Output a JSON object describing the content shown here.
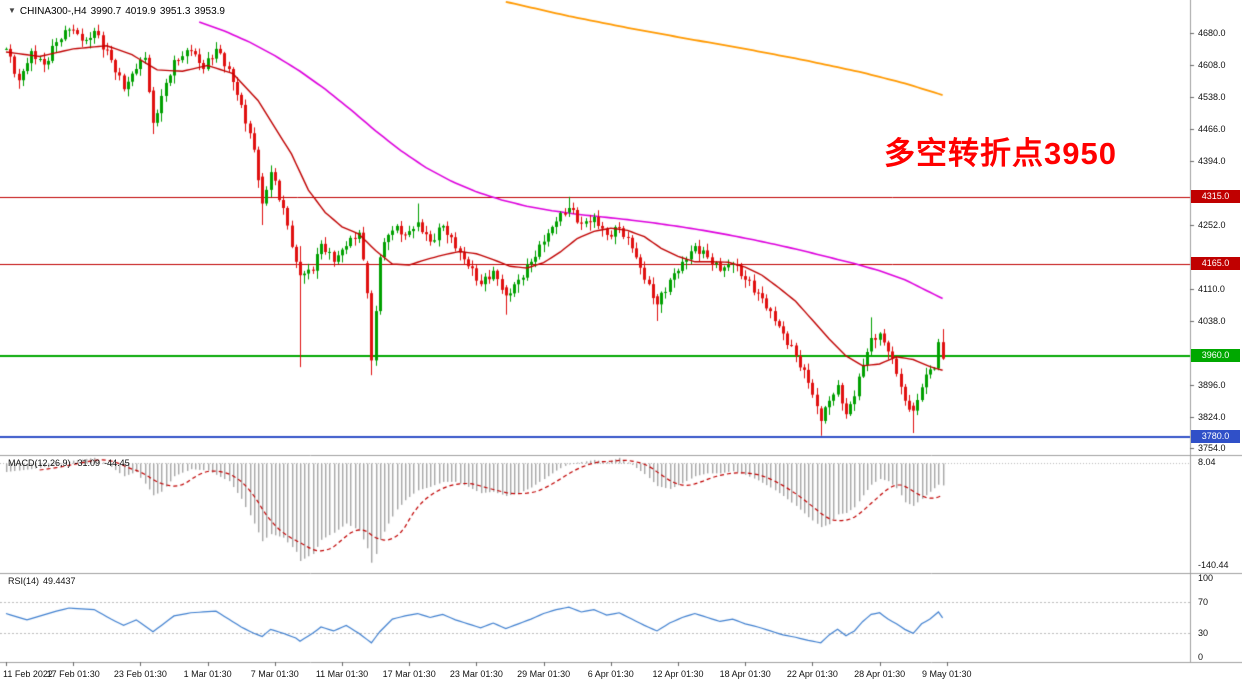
{
  "header": {
    "symbol_period": "CHINA300-,H4",
    "open": "3990.7",
    "high": "4019.9",
    "low": "3951.3",
    "close": "3953.9"
  },
  "annotation": {
    "text": "多空转折点3950",
    "color": "#ff0000"
  },
  "price_scale": {
    "ticks": [
      4680,
      4608,
      4538,
      4466,
      4394,
      4252,
      4110,
      4038,
      3896,
      3824,
      3754
    ]
  },
  "time_scale": {
    "labels": [
      "11 Feb 2022",
      "17 Feb 01:30",
      "23 Feb 01:30",
      "1 Mar 01:30",
      "7 Mar 01:30",
      "11 Mar 01:30",
      "17 Mar 01:30",
      "23 Mar 01:30",
      "29 Mar 01:30",
      "6 Apr 01:30",
      "12 Apr 01:30",
      "18 Apr 01:30",
      "22 Apr 01:30",
      "28 Apr 01:30",
      "9 May 01:30"
    ],
    "step": 16
  },
  "indicators": {
    "macd": {
      "label": "MACD(12,26,9)",
      "value_main": "-31.09",
      "value_signal": "-44.45",
      "scale_max": "8.04",
      "scale_min": "-140.44"
    },
    "rsi": {
      "label": "RSI(14)",
      "value": "49.4437",
      "scale_levels": [
        100,
        70,
        30,
        0
      ]
    }
  },
  "chart_data": {
    "type": "candlestick",
    "symbol": "CHINA300-",
    "timeframe": "H4",
    "bar_count": 224,
    "price_ylim": [
      3739,
      4754
    ],
    "macd_ylim": [
      -155,
      12
    ],
    "rsi_ylim": [
      -6.3,
      106.3
    ],
    "levels": [
      {
        "price": 4315,
        "color": "#c00000",
        "width": 1
      },
      {
        "price": 4165,
        "color": "#c00000",
        "width": 1
      },
      {
        "price": 3960,
        "color": "#00a800",
        "width": 2
      },
      {
        "price": 3780,
        "color": "#3050c8",
        "width": 2
      }
    ],
    "colors": {
      "bull": "#00a000",
      "bear": "#e01010",
      "macd_hist": "#a6a6a6",
      "macd_signal": "#c00000",
      "rsi": "#4080d0"
    },
    "close_anchors": [
      [
        0,
        4645
      ],
      [
        3,
        4575
      ],
      [
        6,
        4640
      ],
      [
        9,
        4610
      ],
      [
        12,
        4660
      ],
      [
        15,
        4688
      ],
      [
        19,
        4665
      ],
      [
        21,
        4685
      ],
      [
        25,
        4620
      ],
      [
        28,
        4555
      ],
      [
        31,
        4600
      ],
      [
        33,
        4625
      ],
      [
        35,
        4480
      ],
      [
        37,
        4540
      ],
      [
        40,
        4620
      ],
      [
        44,
        4640
      ],
      [
        47,
        4600
      ],
      [
        50,
        4645
      ],
      [
        53,
        4600
      ],
      [
        56,
        4520
      ],
      [
        59,
        4420
      ],
      [
        61,
        4300
      ],
      [
        63,
        4370
      ],
      [
        66,
        4290
      ],
      [
        69,
        4170
      ],
      [
        70,
        4140
      ],
      [
        73,
        4150
      ],
      [
        75,
        4210
      ],
      [
        78,
        4170
      ],
      [
        81,
        4205
      ],
      [
        84,
        4235
      ],
      [
        86,
        4100
      ],
      [
        87,
        3950
      ],
      [
        88,
        4060
      ],
      [
        89,
        4180
      ],
      [
        91,
        4230
      ],
      [
        93,
        4250
      ],
      [
        95,
        4230
      ],
      [
        98,
        4258
      ],
      [
        101,
        4215
      ],
      [
        104,
        4250
      ],
      [
        107,
        4200
      ],
      [
        110,
        4160
      ],
      [
        113,
        4120
      ],
      [
        116,
        4150
      ],
      [
        119,
        4095
      ],
      [
        122,
        4130
      ],
      [
        125,
        4170
      ],
      [
        128,
        4215
      ],
      [
        131,
        4260
      ],
      [
        134,
        4290
      ],
      [
        137,
        4255
      ],
      [
        140,
        4270
      ],
      [
        143,
        4230
      ],
      [
        146,
        4245
      ],
      [
        149,
        4200
      ],
      [
        152,
        4130
      ],
      [
        155,
        4075
      ],
      [
        158,
        4130
      ],
      [
        161,
        4170
      ],
      [
        164,
        4205
      ],
      [
        167,
        4180
      ],
      [
        170,
        4150
      ],
      [
        173,
        4165
      ],
      [
        176,
        4130
      ],
      [
        179,
        4100
      ],
      [
        182,
        4060
      ],
      [
        185,
        4010
      ],
      [
        188,
        3960
      ],
      [
        191,
        3900
      ],
      [
        194,
        3815
      ],
      [
        196,
        3860
      ],
      [
        198,
        3895
      ],
      [
        200,
        3830
      ],
      [
        202,
        3870
      ],
      [
        204,
        3940
      ],
      [
        206,
        4000
      ],
      [
        208,
        4010
      ],
      [
        210,
        3970
      ],
      [
        212,
        3920
      ],
      [
        214,
        3860
      ],
      [
        216,
        3838
      ],
      [
        218,
        3890
      ],
      [
        220,
        3930
      ],
      [
        221,
        3932
      ],
      [
        222,
        3990.7
      ],
      [
        223,
        3953.9
      ]
    ],
    "candle_overrides": {
      "35": [
        4552,
        4560,
        4455,
        4480
      ],
      "61": [
        4360,
        4368,
        4252,
        4300
      ],
      "70": [
        4170,
        4205,
        3935,
        4140
      ],
      "86": [
        4167,
        4172,
        4088,
        4100
      ],
      "87": [
        4100,
        4106,
        3917,
        3950
      ],
      "88": [
        3950,
        4072,
        3938,
        4060
      ],
      "89": [
        4060,
        4185,
        4052,
        4180
      ],
      "98": [
        4248,
        4300,
        4238,
        4258
      ],
      "119": [
        4113,
        4118,
        4052,
        4095
      ],
      "134": [
        4280,
        4315,
        4270,
        4290
      ],
      "155": [
        4093,
        4098,
        4038,
        4075
      ],
      "194": [
        3843,
        3848,
        3782,
        3815
      ],
      "206": [
        3970,
        4046,
        3962,
        4000
      ],
      "216": [
        3849,
        3856,
        3788,
        3838
      ],
      "222": [
        3932,
        3998,
        3928,
        3990.7
      ],
      "223": [
        3990.7,
        4019.9,
        3951.3,
        3953.9
      ]
    },
    "ma_lines": [
      {
        "name": "ma-slow-magenta",
        "color": "#dd00dd",
        "width": 1.6,
        "anchors": [
          [
            46,
            4705
          ],
          [
            52,
            4685
          ],
          [
            58,
            4660
          ],
          [
            64,
            4630
          ],
          [
            70,
            4595
          ],
          [
            76,
            4555
          ],
          [
            82,
            4510
          ],
          [
            88,
            4462
          ],
          [
            94,
            4418
          ],
          [
            100,
            4380
          ],
          [
            106,
            4350
          ],
          [
            112,
            4326
          ],
          [
            118,
            4308
          ],
          [
            124,
            4294
          ],
          [
            130,
            4284
          ],
          [
            136,
            4276
          ],
          [
            142,
            4270
          ],
          [
            148,
            4264
          ],
          [
            154,
            4257
          ],
          [
            160,
            4249
          ],
          [
            166,
            4240
          ],
          [
            172,
            4230
          ],
          [
            178,
            4219
          ],
          [
            184,
            4207
          ],
          [
            190,
            4194
          ],
          [
            196,
            4180
          ],
          [
            202,
            4166
          ],
          [
            208,
            4150
          ],
          [
            214,
            4130
          ],
          [
            220,
            4102
          ],
          [
            223,
            4088
          ]
        ]
      },
      {
        "name": "ma-long-orange",
        "color": "#ff9900",
        "width": 1.8,
        "anchors": [
          [
            119,
            4750
          ],
          [
            134,
            4718
          ],
          [
            148,
            4692
          ],
          [
            162,
            4668
          ],
          [
            176,
            4645
          ],
          [
            190,
            4620
          ],
          [
            204,
            4592
          ],
          [
            214,
            4568
          ],
          [
            223,
            4542
          ]
        ]
      },
      {
        "name": "ma-fast-red",
        "color": "#c00000",
        "width": 1.4,
        "anchors": [
          [
            0,
            4638
          ],
          [
            8,
            4628
          ],
          [
            16,
            4645
          ],
          [
            24,
            4652
          ],
          [
            30,
            4632
          ],
          [
            36,
            4598
          ],
          [
            42,
            4595
          ],
          [
            48,
            4608
          ],
          [
            54,
            4590
          ],
          [
            60,
            4530
          ],
          [
            64,
            4470
          ],
          [
            68,
            4410
          ],
          [
            72,
            4330
          ],
          [
            76,
            4280
          ],
          [
            80,
            4248
          ],
          [
            84,
            4232
          ],
          [
            88,
            4195
          ],
          [
            92,
            4165
          ],
          [
            96,
            4163
          ],
          [
            100,
            4175
          ],
          [
            104,
            4185
          ],
          [
            108,
            4193
          ],
          [
            112,
            4188
          ],
          [
            116,
            4175
          ],
          [
            120,
            4160
          ],
          [
            124,
            4156
          ],
          [
            128,
            4168
          ],
          [
            132,
            4192
          ],
          [
            136,
            4222
          ],
          [
            140,
            4238
          ],
          [
            144,
            4245
          ],
          [
            148,
            4240
          ],
          [
            152,
            4226
          ],
          [
            156,
            4200
          ],
          [
            160,
            4182
          ],
          [
            164,
            4170
          ],
          [
            168,
            4170
          ],
          [
            172,
            4169
          ],
          [
            176,
            4158
          ],
          [
            180,
            4140
          ],
          [
            184,
            4112
          ],
          [
            188,
            4082
          ],
          [
            192,
            4040
          ],
          [
            196,
            3998
          ],
          [
            200,
            3960
          ],
          [
            204,
            3938
          ],
          [
            208,
            3942
          ],
          [
            212,
            3958
          ],
          [
            216,
            3952
          ],
          [
            220,
            3936
          ],
          [
            223,
            3928
          ]
        ]
      }
    ],
    "macd_anchors": [
      [
        0,
        -12
      ],
      [
        6,
        -8
      ],
      [
        12,
        -2
      ],
      [
        16,
        4
      ],
      [
        21,
        8
      ],
      [
        25,
        -5
      ],
      [
        28,
        -18
      ],
      [
        31,
        -12
      ],
      [
        35,
        -45
      ],
      [
        37,
        -40
      ],
      [
        40,
        -18
      ],
      [
        44,
        -8
      ],
      [
        48,
        -10
      ],
      [
        53,
        -25
      ],
      [
        56,
        -50
      ],
      [
        59,
        -85
      ],
      [
        61,
        -110
      ],
      [
        63,
        -100
      ],
      [
        66,
        -105
      ],
      [
        69,
        -125
      ],
      [
        70,
        -138
      ],
      [
        73,
        -128
      ],
      [
        75,
        -108
      ],
      [
        78,
        -98
      ],
      [
        81,
        -85
      ],
      [
        84,
        -95
      ],
      [
        86,
        -120
      ],
      [
        87,
        -140.44
      ],
      [
        88,
        -128
      ],
      [
        89,
        -108
      ],
      [
        91,
        -85
      ],
      [
        93,
        -65
      ],
      [
        95,
        -52
      ],
      [
        98,
        -38
      ],
      [
        101,
        -33
      ],
      [
        104,
        -26
      ],
      [
        107,
        -26
      ],
      [
        110,
        -33
      ],
      [
        113,
        -42
      ],
      [
        116,
        -40
      ],
      [
        119,
        -46
      ],
      [
        122,
        -42
      ],
      [
        125,
        -34
      ],
      [
        128,
        -22
      ],
      [
        131,
        -10
      ],
      [
        134,
        0
      ],
      [
        137,
        2
      ],
      [
        140,
        5
      ],
      [
        143,
        2
      ],
      [
        146,
        8
      ],
      [
        149,
        -2
      ],
      [
        152,
        -15
      ],
      [
        155,
        -32
      ],
      [
        158,
        -36
      ],
      [
        161,
        -28
      ],
      [
        164,
        -18
      ],
      [
        167,
        -14
      ],
      [
        170,
        -14
      ],
      [
        173,
        -11
      ],
      [
        176,
        -16
      ],
      [
        179,
        -24
      ],
      [
        182,
        -34
      ],
      [
        185,
        -46
      ],
      [
        188,
        -60
      ],
      [
        191,
        -76
      ],
      [
        194,
        -90
      ],
      [
        196,
        -86
      ],
      [
        198,
        -72
      ],
      [
        200,
        -70
      ],
      [
        202,
        -62
      ],
      [
        204,
        -45
      ],
      [
        206,
        -30
      ],
      [
        208,
        -22
      ],
      [
        210,
        -25
      ],
      [
        212,
        -35
      ],
      [
        214,
        -55
      ],
      [
        216,
        -60
      ],
      [
        218,
        -50
      ],
      [
        220,
        -40
      ],
      [
        222,
        -30
      ],
      [
        223,
        -31.09
      ]
    ],
    "rsi_anchors": [
      [
        0,
        55
      ],
      [
        5,
        47
      ],
      [
        12,
        58
      ],
      [
        15,
        62
      ],
      [
        21,
        60
      ],
      [
        25,
        48
      ],
      [
        28,
        40
      ],
      [
        31,
        47
      ],
      [
        35,
        32
      ],
      [
        40,
        52
      ],
      [
        44,
        56
      ],
      [
        50,
        58
      ],
      [
        53,
        48
      ],
      [
        56,
        38
      ],
      [
        59,
        30
      ],
      [
        61,
        26
      ],
      [
        63,
        35
      ],
      [
        66,
        30
      ],
      [
        69,
        24
      ],
      [
        70,
        20
      ],
      [
        73,
        30
      ],
      [
        75,
        38
      ],
      [
        78,
        33
      ],
      [
        81,
        40
      ],
      [
        84,
        30
      ],
      [
        86,
        22
      ],
      [
        87,
        18
      ],
      [
        89,
        32
      ],
      [
        92,
        48
      ],
      [
        95,
        52
      ],
      [
        98,
        55
      ],
      [
        101,
        50
      ],
      [
        104,
        54
      ],
      [
        107,
        47
      ],
      [
        110,
        42
      ],
      [
        113,
        37
      ],
      [
        116,
        43
      ],
      [
        119,
        36
      ],
      [
        122,
        42
      ],
      [
        125,
        48
      ],
      [
        128,
        55
      ],
      [
        131,
        60
      ],
      [
        134,
        63
      ],
      [
        137,
        57
      ],
      [
        140,
        60
      ],
      [
        143,
        53
      ],
      [
        146,
        56
      ],
      [
        149,
        48
      ],
      [
        152,
        40
      ],
      [
        155,
        33
      ],
      [
        158,
        43
      ],
      [
        161,
        50
      ],
      [
        164,
        55
      ],
      [
        167,
        50
      ],
      [
        170,
        45
      ],
      [
        173,
        48
      ],
      [
        176,
        42
      ],
      [
        179,
        38
      ],
      [
        182,
        33
      ],
      [
        185,
        28
      ],
      [
        188,
        25
      ],
      [
        191,
        21
      ],
      [
        194,
        18
      ],
      [
        196,
        28
      ],
      [
        198,
        35
      ],
      [
        200,
        27
      ],
      [
        202,
        33
      ],
      [
        204,
        45
      ],
      [
        206,
        54
      ],
      [
        208,
        56
      ],
      [
        210,
        48
      ],
      [
        212,
        42
      ],
      [
        214,
        35
      ],
      [
        216,
        30
      ],
      [
        218,
        42
      ],
      [
        220,
        48
      ],
      [
        222,
        57
      ],
      [
        223,
        49.4437
      ]
    ]
  }
}
